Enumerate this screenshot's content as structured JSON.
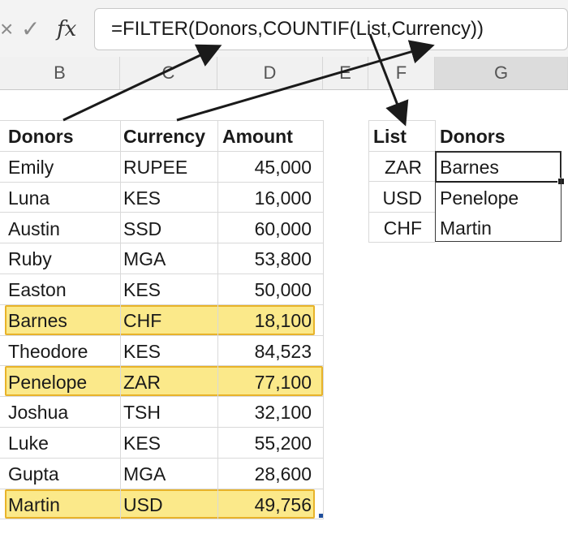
{
  "formula_bar": {
    "cancel_icon": "×",
    "enter_icon": "✓",
    "fx_label": "fx",
    "formula": "=FILTER(Donors,COUNTIF(List,Currency))"
  },
  "columns": [
    "B",
    "C",
    "D",
    "E",
    "F",
    "G"
  ],
  "donors_table": {
    "headers": [
      "Donors",
      "Currency",
      "Amount"
    ],
    "rows": [
      [
        "Emily",
        "RUPEE",
        "45,000"
      ],
      [
        "Luna",
        "KES",
        "16,000"
      ],
      [
        "Austin",
        "SSD",
        "60,000"
      ],
      [
        "Ruby",
        "MGA",
        "53,800"
      ],
      [
        "Easton",
        "KES",
        "50,000"
      ],
      [
        "Barnes",
        "CHF",
        "18,100"
      ],
      [
        "Theodore",
        "KES",
        "84,523"
      ],
      [
        "Penelope",
        "ZAR",
        "77,100"
      ],
      [
        "Joshua",
        "TSH",
        "32,100"
      ],
      [
        "Luke",
        "KES",
        "55,200"
      ],
      [
        "Gupta",
        "MGA",
        "28,600"
      ],
      [
        "Martin",
        "USD",
        "49,756"
      ]
    ]
  },
  "list_table": {
    "list_header": "List",
    "donors_header": "Donors",
    "list": [
      "ZAR",
      "USD",
      "CHF"
    ],
    "results": [
      "Barnes",
      "Penelope",
      "Martin"
    ]
  },
  "colors": {
    "highlight_fill": "#fbe98a",
    "highlight_border": "#e8b32a",
    "selection": "#1f1f1f"
  }
}
